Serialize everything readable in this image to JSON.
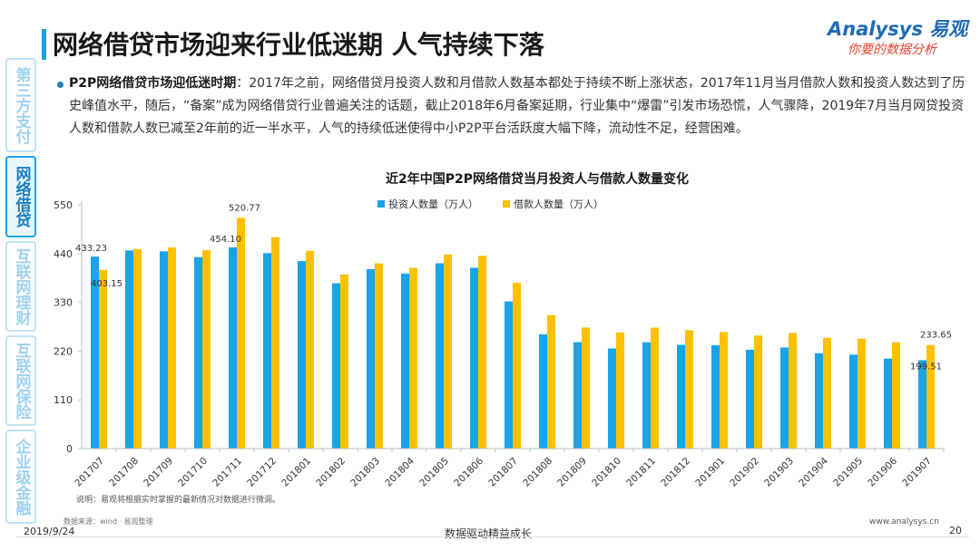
{
  "header": {
    "title": "网络借贷市场迎来行业低迷期 人气持续下落",
    "logo_brand": "Analysys 易观",
    "logo_slogan": "你要的数据分析"
  },
  "nav": {
    "items": [
      {
        "label": "第三方支付",
        "active": false
      },
      {
        "label": "网络借贷",
        "active": true
      },
      {
        "label": "互联网理财",
        "active": false
      },
      {
        "label": "互联网保险",
        "active": false
      },
      {
        "label": "企业级金融",
        "active": false
      }
    ]
  },
  "content": {
    "lead": "P2P网络借贷市场迎低迷时期",
    "body": "：2017年之前，网络借贷月投资人数和月借款人数基本都处于持续不断上涨状态，2017年11月当月借款人数和投资人数达到了历史峰值水平，随后，“备案”成为网络借贷行业普遍关注的话题，截止2018年6月备案延期，行业集中“爆雷”引发市场恐慌，人气骤降，2019年7月当月网贷投资人数和借款人数已减至2年前的近一半水平，人气的持续低迷使得中小P2P平台活跃度大幅下降，流动性不足，经营困难。"
  },
  "chart_data": {
    "type": "bar",
    "title": "近2年中国P2P网络借贷当月投资人与借款人数量变化",
    "categories": [
      "201707",
      "201708",
      "201709",
      "201710",
      "201711",
      "201712",
      "201801",
      "201802",
      "201803",
      "201804",
      "201805",
      "201806",
      "201807",
      "201808",
      "201809",
      "201810",
      "201811",
      "201812",
      "201901",
      "201902",
      "201903",
      "201904",
      "201905",
      "201906",
      "201907"
    ],
    "series": [
      {
        "name": "投资人数量（万人）",
        "color": "#1aa3e8",
        "values": [
          433.23,
          447,
          445,
          432,
          454.1,
          441,
          423,
          373,
          405,
          395,
          418,
          408,
          332,
          258,
          240,
          226,
          240,
          234,
          233,
          223,
          228,
          215,
          212,
          203,
          199.51
        ]
      },
      {
        "name": "借款人数量（万人）",
        "color": "#ffc000",
        "values": [
          403.15,
          450,
          454,
          448,
          520.77,
          477,
          446,
          393,
          418,
          408,
          438,
          435,
          374,
          301,
          273,
          262,
          273,
          267,
          263,
          255,
          261,
          250,
          248,
          240,
          233.65
        ]
      }
    ],
    "data_labels": [
      {
        "series": 0,
        "index": 0,
        "text": "433.23"
      },
      {
        "series": 1,
        "index": 0,
        "text": "403.15"
      },
      {
        "series": 0,
        "index": 4,
        "text": "454.10"
      },
      {
        "series": 1,
        "index": 4,
        "text": "520.77"
      },
      {
        "series": 1,
        "index": 24,
        "text": "233.65"
      },
      {
        "series": 0,
        "index": 24,
        "text": "199.51"
      }
    ],
    "yticks": [
      0,
      110,
      220,
      330,
      440,
      550
    ],
    "ylim": [
      0,
      550
    ],
    "legend": "top-center",
    "grid": false
  },
  "footer": {
    "note": "说明：易观将根据实时掌握的最新情况对数据进行微调。",
    "source": "数据来源：wind · 易观整理",
    "date": "2019/9/24",
    "slogan": "数据驱动精益成长",
    "website": "www.analysys.cn",
    "page": "20"
  }
}
